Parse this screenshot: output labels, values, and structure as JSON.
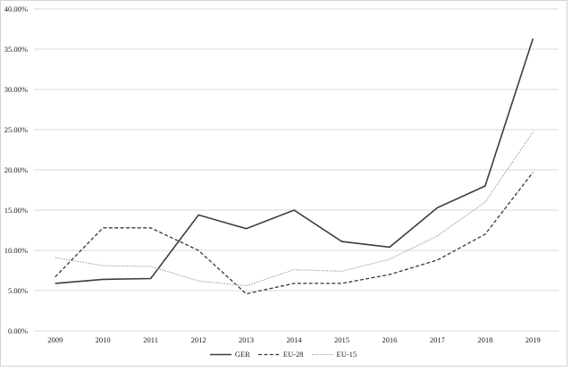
{
  "chart_data": {
    "type": "line",
    "title": "",
    "xlabel": "",
    "ylabel": "",
    "categories": [
      "2009",
      "2010",
      "2011",
      "2012",
      "2013",
      "2014",
      "2015",
      "2016",
      "2017",
      "2018",
      "2019"
    ],
    "series": [
      {
        "name": "GER",
        "style": "solid",
        "color": "#3d3d3d",
        "values": [
          5.9,
          6.4,
          6.5,
          14.4,
          12.7,
          15.0,
          11.1,
          10.4,
          15.3,
          18.0,
          36.3
        ]
      },
      {
        "name": "EU-28",
        "style": "dashed",
        "color": "#383838",
        "values": [
          6.7,
          12.8,
          12.8,
          10.0,
          4.6,
          5.9,
          5.9,
          7.0,
          8.8,
          12.0,
          19.7
        ]
      },
      {
        "name": "EU-15",
        "style": "dotted",
        "color": "#a9a9a9",
        "values": [
          9.1,
          8.1,
          8.0,
          6.2,
          5.6,
          7.6,
          7.4,
          8.9,
          11.8,
          16.0,
          24.7
        ]
      }
    ],
    "ylim": [
      0,
      40
    ],
    "ytick_step": 5,
    "grid": true,
    "legend_position": "bottom"
  },
  "y_axis": {
    "tick_labels": [
      "0.00%",
      "5.00%",
      "10.00%",
      "15.00%",
      "20.00%",
      "25.00%",
      "30.00%",
      "35.00%",
      "40.00%"
    ]
  },
  "x_axis": {
    "tick_labels": [
      "2009",
      "2010",
      "2011",
      "2012",
      "2013",
      "2014",
      "2015",
      "2016",
      "2017",
      "2018",
      "2019"
    ]
  },
  "legend": {
    "items": [
      "GER",
      "EU-28",
      "EU-15"
    ]
  },
  "colors": {
    "gridline": "#d9d9d9",
    "frame_border": "#d4d4d4",
    "text": "#1a1a1a",
    "background": "#ffffff"
  }
}
